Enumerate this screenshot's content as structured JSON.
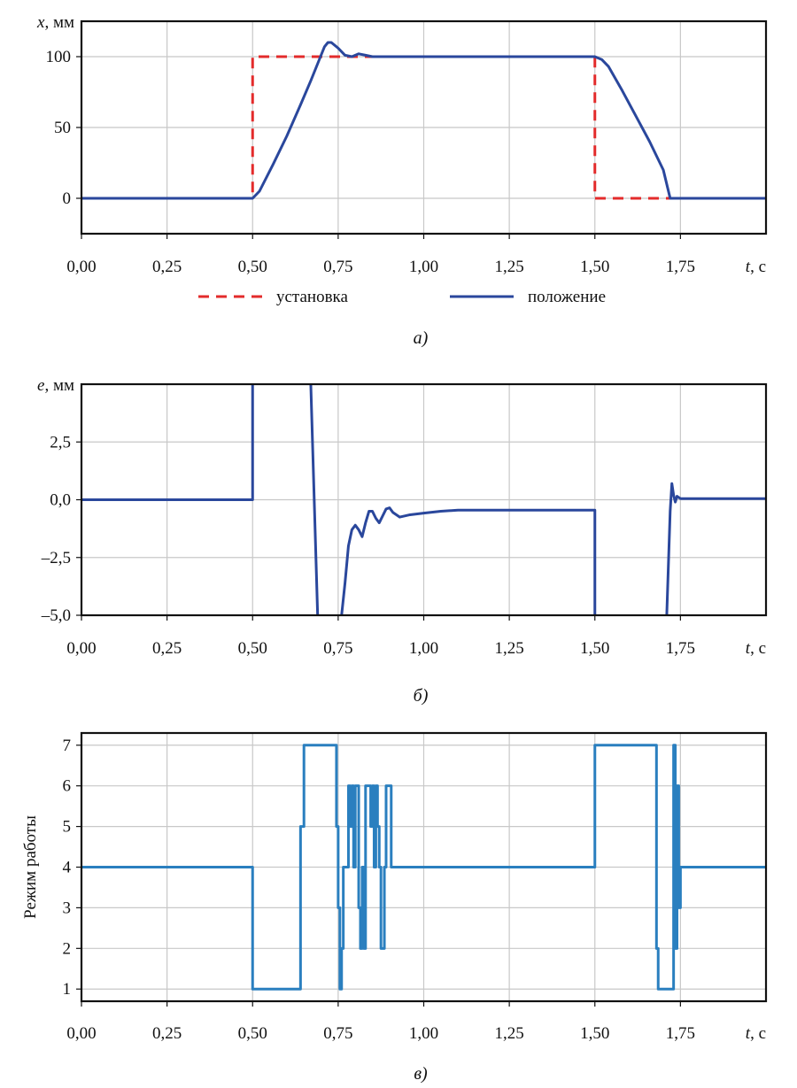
{
  "colors": {
    "setpoint": "#e32b2b",
    "position": "#2a479c",
    "error": "#2a479c",
    "mode": "#2a7fbf",
    "grid": "#c8c8c8",
    "axis": "#111111"
  },
  "chart_data": [
    {
      "id": "a",
      "type": "line",
      "ylabel_var": "x",
      "ylabel_unit": ", мм",
      "xlabel_var": "t",
      "xlabel_unit": ", с",
      "caption": "а)",
      "xlim": [
        0,
        2
      ],
      "ylim": [
        -25,
        125
      ],
      "x_ticks": [
        0,
        0.25,
        0.5,
        0.75,
        1,
        1.25,
        1.5,
        1.75
      ],
      "x_tick_labels": [
        "0,00",
        "0,25",
        "0,50",
        "0,75",
        "1,00",
        "1,25",
        "1,50",
        "1,75"
      ],
      "y_ticks": [
        0,
        50,
        100
      ],
      "y_tick_labels": [
        "0",
        "50",
        "100"
      ],
      "grid": true,
      "legend_position": "bottom",
      "series": [
        {
          "name": "установка",
          "style": "dashed",
          "color_key": "setpoint",
          "x": [
            0,
            0.5,
            0.5,
            1.5,
            1.5,
            1.72
          ],
          "y": [
            0,
            0,
            100,
            100,
            0,
            0
          ]
        },
        {
          "name": "положение",
          "style": "solid",
          "color_key": "position",
          "x": [
            0,
            0.5,
            0.52,
            0.56,
            0.6,
            0.64,
            0.67,
            0.69,
            0.71,
            0.72,
            0.73,
            0.75,
            0.77,
            0.79,
            0.81,
            0.83,
            0.85,
            0.88,
            0.92,
            1.0,
            1.5,
            1.52,
            1.54,
            1.58,
            1.62,
            1.66,
            1.7,
            1.72,
            1.75,
            2.0
          ],
          "y": [
            0,
            0,
            5,
            24,
            44,
            66,
            83,
            95,
            107,
            110,
            110,
            106,
            101,
            100,
            102,
            101,
            100,
            100,
            100,
            100,
            100,
            98,
            93,
            76,
            58,
            40,
            20,
            0,
            0,
            0
          ]
        }
      ]
    },
    {
      "id": "b",
      "type": "line",
      "ylabel_var": "e",
      "ylabel_unit": ", мм",
      "xlabel_var": "t",
      "xlabel_unit": ", с",
      "caption": "б)",
      "xlim": [
        0,
        2
      ],
      "ylim": [
        -5,
        5
      ],
      "x_ticks": [
        0,
        0.25,
        0.5,
        0.75,
        1,
        1.25,
        1.5,
        1.75
      ],
      "x_tick_labels": [
        "0,00",
        "0,25",
        "0,50",
        "0,75",
        "1,00",
        "1,25",
        "1,50",
        "1,75"
      ],
      "y_ticks": [
        -5,
        -2.5,
        0,
        2.5
      ],
      "y_tick_labels": [
        "–5,0",
        "–2,5",
        "0,0",
        "2,5"
      ],
      "grid": true,
      "series": [
        {
          "color_key": "error",
          "segments": [
            {
              "x": [
                0,
                0.5,
                0.5
              ],
              "y": [
                0,
                0,
                5
              ]
            },
            {
              "x": [
                0.67,
                0.69
              ],
              "y": [
                5,
                -5
              ]
            },
            {
              "x": [
                0.76,
                0.77,
                0.78,
                0.79,
                0.8,
                0.81,
                0.82,
                0.83,
                0.84,
                0.85,
                0.86,
                0.87,
                0.88,
                0.89,
                0.9,
                0.91,
                0.93,
                0.96,
                1.0,
                1.05,
                1.1,
                1.5,
                1.5
              ],
              "y": [
                -5,
                -3.6,
                -2.0,
                -1.3,
                -1.1,
                -1.3,
                -1.6,
                -1.0,
                -0.5,
                -0.5,
                -0.8,
                -1.0,
                -0.7,
                -0.4,
                -0.35,
                -0.55,
                -0.75,
                -0.65,
                -0.58,
                -0.5,
                -0.45,
                -0.45,
                -5
              ]
            },
            {
              "x": [
                1.71,
                1.72,
                1.725,
                1.73,
                1.735,
                1.74,
                1.75,
                1.8,
                2.0
              ],
              "y": [
                -5,
                -0.5,
                0.7,
                0.2,
                -0.1,
                0.15,
                0.05,
                0.05,
                0.05
              ]
            }
          ]
        }
      ]
    },
    {
      "id": "c",
      "type": "line",
      "ylabel": "Режим работы",
      "xlabel_var": "t",
      "xlabel_unit": ", с",
      "caption": "в)",
      "xlim": [
        0,
        2
      ],
      "ylim": [
        0.7,
        7.3
      ],
      "x_ticks": [
        0,
        0.25,
        0.5,
        0.75,
        1,
        1.25,
        1.5,
        1.75
      ],
      "x_tick_labels": [
        "0,00",
        "0,25",
        "0,50",
        "0,75",
        "1,00",
        "1,25",
        "1,50",
        "1,75"
      ],
      "y_ticks": [
        1,
        2,
        3,
        4,
        5,
        6,
        7
      ],
      "y_tick_labels": [
        "1",
        "2",
        "3",
        "4",
        "5",
        "6",
        "7"
      ],
      "grid": true,
      "series": [
        {
          "color_key": "mode",
          "step": true,
          "x": [
            0,
            0.5,
            0.5,
            0.64,
            0.64,
            0.65,
            0.65,
            0.745,
            0.745,
            0.75,
            0.75,
            0.755,
            0.755,
            0.76,
            0.76,
            0.765,
            0.765,
            0.78,
            0.78,
            0.785,
            0.785,
            0.79,
            0.79,
            0.795,
            0.795,
            0.8,
            0.8,
            0.81,
            0.81,
            0.815,
            0.815,
            0.82,
            0.82,
            0.825,
            0.825,
            0.83,
            0.83,
            0.845,
            0.845,
            0.85,
            0.85,
            0.855,
            0.855,
            0.86,
            0.86,
            0.865,
            0.865,
            0.87,
            0.87,
            0.875,
            0.875,
            0.885,
            0.885,
            0.89,
            0.89,
            0.895,
            0.895,
            0.905,
            0.905,
            0.935,
            0.935,
            0.94,
            0.94,
            1.5,
            1.5,
            1.68,
            1.68,
            1.685,
            1.685,
            1.73,
            1.73,
            1.735,
            1.735,
            1.74,
            1.74,
            1.745,
            1.745,
            1.75,
            1.75,
            1.755,
            1.755,
            2.0
          ],
          "y": [
            4,
            4,
            1,
            1,
            5,
            5,
            7,
            7,
            5,
            5,
            3,
            3,
            1,
            1,
            2,
            2,
            4,
            4,
            6,
            6,
            5,
            5,
            6,
            6,
            4,
            4,
            6,
            6,
            3,
            3,
            2,
            2,
            4,
            4,
            2,
            2,
            6,
            6,
            5,
            5,
            6,
            6,
            4,
            4,
            6,
            6,
            5,
            5,
            4,
            4,
            2,
            2,
            4,
            4,
            6,
            6,
            6,
            6,
            4,
            4,
            4,
            4,
            4,
            4,
            7,
            7,
            2,
            2,
            1,
            1,
            7,
            7,
            2,
            2,
            6,
            6,
            3,
            3,
            4,
            4,
            4,
            4
          ]
        }
      ]
    }
  ]
}
